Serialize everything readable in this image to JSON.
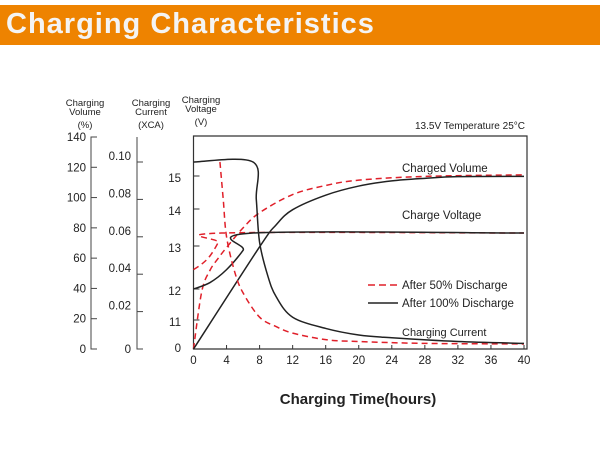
{
  "header": {
    "title": "Charging Characteristics"
  },
  "colors": {
    "banner": "#EE8300",
    "after_50": "#E0202A",
    "after_100": "#222222"
  },
  "chart_data": {
    "type": "line",
    "xlabel": "Charging Time(hours)",
    "xlim": [
      0,
      40
    ],
    "xticks": [
      0,
      4,
      8,
      12,
      16,
      20,
      24,
      28,
      32,
      36,
      40
    ],
    "note": "13.5V   Temperature 25°C",
    "axes": {
      "volume": {
        "label_lines": [
          "Charging",
          "Volume",
          "(%)"
        ],
        "ylim": [
          0,
          140
        ],
        "ticks": [
          0,
          20,
          40,
          60,
          80,
          100,
          120,
          140
        ]
      },
      "current": {
        "label_lines": [
          "Charging",
          "Current",
          "(XCA)"
        ],
        "ticks": [
          "0",
          "0.02",
          "0.04",
          "0.06",
          "0.08",
          "0.10"
        ]
      },
      "voltage": {
        "label_lines": [
          "Charging",
          "Voltage",
          "(V)"
        ],
        "ticks": [
          0,
          11,
          12,
          13,
          14,
          15
        ]
      }
    },
    "legend": [
      {
        "name": "After 50% Discharge",
        "style": "dashed",
        "color": "#E0202A"
      },
      {
        "name": "After 100% Discharge",
        "style": "solid",
        "color": "#222222"
      }
    ],
    "curve_labels": {
      "volume": "Charged Volume",
      "voltage": "Charge Voltage",
      "current": "Charging Current"
    },
    "series": [
      {
        "group": "volume",
        "discharge": "50%",
        "axis": "volume",
        "x": [
          0,
          1,
          2,
          3,
          4,
          6,
          8,
          12,
          16,
          20,
          28,
          40
        ],
        "y": [
          0,
          38,
          52,
          60,
          67,
          80,
          90,
          102,
          108,
          111.5,
          114,
          115
        ]
      },
      {
        "group": "volume",
        "discharge": "100%",
        "axis": "volume",
        "x": [
          0,
          8,
          10,
          12,
          16,
          20,
          24,
          28,
          32,
          40
        ],
        "y": [
          0,
          67.5,
          82,
          92,
          101.6,
          107.6,
          111,
          112.7,
          113.8,
          114
        ]
      },
      {
        "group": "voltage",
        "discharge": "50%",
        "axis": "voltage",
        "x": [
          0,
          1,
          2,
          3,
          3.4,
          40
        ],
        "y": [
          12.45,
          12.58,
          12.77,
          13.1,
          13.35,
          13.35
        ]
      },
      {
        "group": "voltage",
        "discharge": "100%",
        "axis": "voltage",
        "x": [
          0,
          2,
          4,
          6,
          7.2,
          40
        ],
        "y": [
          12.0,
          12.15,
          12.45,
          12.9,
          13.35,
          13.35
        ]
      },
      {
        "group": "current",
        "discharge": "50%",
        "axis": "current",
        "x": [
          3.2,
          3.6,
          4,
          5,
          6,
          8,
          10,
          12,
          16,
          20,
          28,
          40
        ],
        "y": [
          0.1,
          0.08,
          0.06,
          0.041,
          0.03,
          0.017,
          0.012,
          0.0085,
          0.005,
          0.004,
          0.003,
          0.0027
        ]
      },
      {
        "group": "current",
        "discharge": "100%",
        "axis": "current",
        "x": [
          0,
          7.2,
          7.6,
          8,
          9,
          10,
          12,
          16,
          20,
          24,
          32,
          40
        ],
        "y": [
          0.1,
          0.1,
          0.08,
          0.057,
          0.039,
          0.028,
          0.017,
          0.011,
          0.0075,
          0.006,
          0.004,
          0.003
        ]
      }
    ]
  }
}
